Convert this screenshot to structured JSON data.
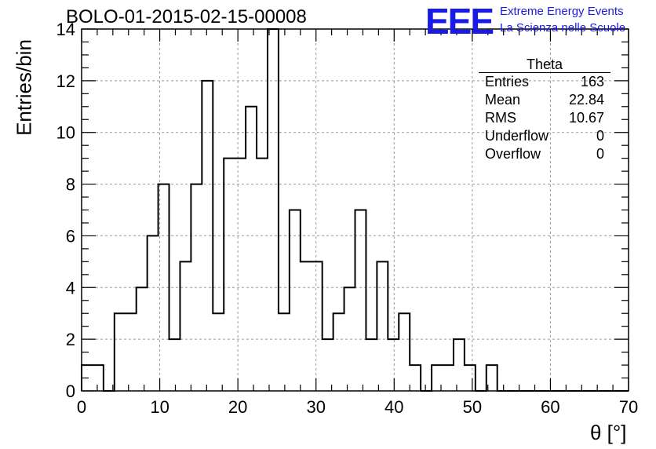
{
  "title": "BOLO-01-2015-02-15-00008",
  "logo": {
    "mark": "EEE",
    "line1": "Extreme Energy Events",
    "line2": "La Scienza nelle Scuole",
    "color": "#1a1ae6"
  },
  "stats": {
    "title": "Theta",
    "rows": [
      {
        "label": "Entries",
        "value": "163"
      },
      {
        "label": "Mean",
        "value": "22.84"
      },
      {
        "label": "RMS",
        "value": "10.67"
      },
      {
        "label": "Underflow",
        "value": "0"
      },
      {
        "label": "Overflow",
        "value": "0"
      }
    ]
  },
  "chart_data": {
    "type": "histogram",
    "xlabel": "θ [°]",
    "ylabel": "Entries/bin",
    "xlim": [
      0,
      70
    ],
    "ylim": [
      0,
      14
    ],
    "grid": true,
    "x_ticks": [
      0,
      10,
      20,
      30,
      40,
      50,
      60,
      70
    ],
    "y_ticks": [
      0,
      2,
      4,
      6,
      8,
      10,
      12,
      14
    ],
    "bin_width": 1.4,
    "bin_start": 0,
    "counts": [
      1,
      1,
      0,
      3,
      3,
      4,
      6,
      8,
      2,
      5,
      8,
      12,
      3,
      9,
      9,
      11,
      9,
      14,
      3,
      7,
      5,
      5,
      2,
      3,
      4,
      7,
      2,
      5,
      2,
      3,
      1,
      0,
      1,
      1,
      2,
      1,
      0,
      1,
      0,
      0,
      0,
      0,
      0,
      0,
      0,
      0,
      0,
      0,
      0,
      0
    ]
  }
}
